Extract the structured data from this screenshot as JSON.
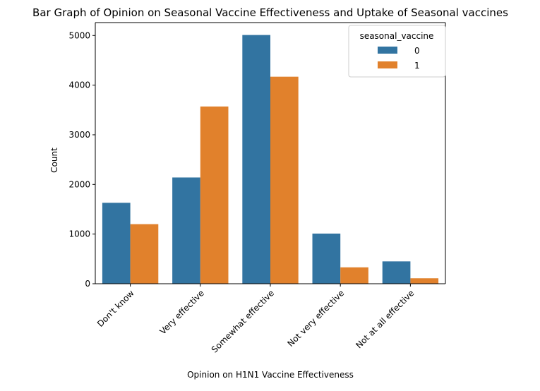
{
  "chart_data": {
    "type": "bar",
    "title": "Bar Graph of Opinion on Seasonal Vaccine Effectiveness and Uptake of Seasonal vaccines",
    "xlabel": "Opinion on H1N1 Vaccine Effectiveness",
    "ylabel": "Count",
    "categories": [
      "Don't know",
      "Very effective",
      "Somewhat effective",
      "Not very effective",
      "Not at all effective"
    ],
    "series": [
      {
        "name": "0",
        "color": "#3274a1",
        "values": [
          1630,
          2140,
          5010,
          1010,
          450
        ]
      },
      {
        "name": "1",
        "color": "#e1812c",
        "values": [
          1200,
          3570,
          4170,
          330,
          110
        ]
      }
    ],
    "ylim": [
      0,
      5260
    ],
    "yticks": [
      0,
      1000,
      2000,
      3000,
      4000,
      5000
    ],
    "legend": {
      "title": "seasonal_vaccine",
      "placement": "top-right"
    },
    "grid": false
  }
}
